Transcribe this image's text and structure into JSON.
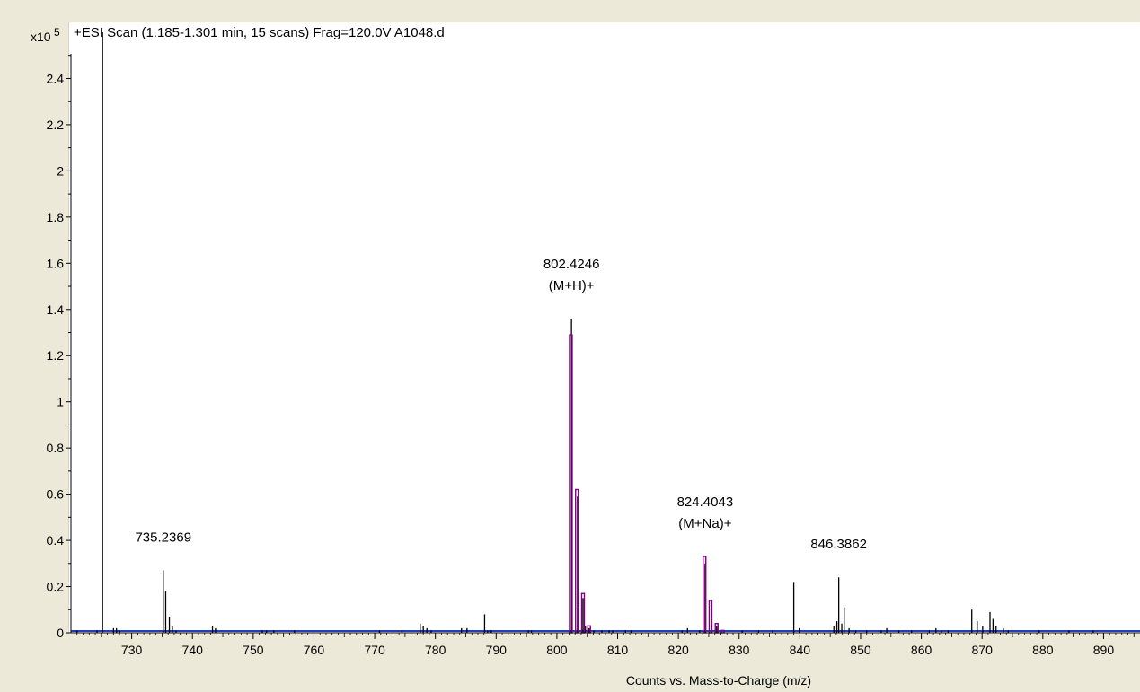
{
  "chart_data": {
    "type": "bar",
    "title": "+ESI Scan (1.185-1.301 min, 15 scans) Frag=120.0V A1048.d",
    "y_multiplier": "x10",
    "y_exponent": "5",
    "xlabel": "Counts vs. Mass-to-Charge (m/z)",
    "ylabel": "",
    "xlim": [
      720,
      896
    ],
    "ylim": [
      0,
      2.6
    ],
    "x_ticks": [
      730,
      740,
      750,
      760,
      770,
      780,
      790,
      800,
      810,
      820,
      830,
      840,
      850,
      860,
      870,
      880,
      890
    ],
    "x_tick_labels": [
      "730",
      "740",
      "750",
      "760",
      "770",
      "780",
      "790",
      "800",
      "810",
      "820",
      "830",
      "840",
      "850",
      "860",
      "870",
      "880",
      "890"
    ],
    "y_ticks": [
      0,
      0.2,
      0.4,
      0.6,
      0.8,
      1,
      1.2,
      1.4,
      1.6,
      1.8,
      2,
      2.2,
      2.4
    ],
    "y_tick_labels": [
      "0",
      "0.2",
      "0.4",
      "0.6",
      "0.8",
      "1",
      "1.2",
      "1.4",
      "1.6",
      "1.8",
      "2",
      "2.2",
      "2.4"
    ],
    "grid": false,
    "colors": {
      "measured": "#000000",
      "isotope_model": "#800080",
      "axis": "#000000",
      "baseline": "#1f3fbf",
      "background": "#ece9d8",
      "plot_background": "#ffffff"
    },
    "series": [
      {
        "values": [
          [
            721,
            0.01
          ],
          [
            724.3,
            0.01
          ],
          [
            725.2,
            2.6
          ],
          [
            727,
            0.02
          ],
          [
            727.5,
            0.02
          ],
          [
            728,
            0.01
          ],
          [
            735.2,
            0.27
          ],
          [
            735.6,
            0.18
          ],
          [
            736.2,
            0.07
          ],
          [
            736.7,
            0.03
          ],
          [
            737.3,
            0.01
          ],
          [
            743.3,
            0.03
          ],
          [
            743.8,
            0.02
          ],
          [
            751.5,
            0.01
          ],
          [
            752.2,
            0.01
          ],
          [
            753.4,
            0.01
          ],
          [
            756.8,
            0.01
          ],
          [
            770.8,
            0.01
          ],
          [
            774.5,
            0.01
          ],
          [
            777.5,
            0.04
          ],
          [
            778,
            0.03
          ],
          [
            778.6,
            0.02
          ],
          [
            779.3,
            0.01
          ],
          [
            784.3,
            0.02
          ],
          [
            785.2,
            0.02
          ],
          [
            788.1,
            0.08
          ],
          [
            788.6,
            0.01
          ],
          [
            789.2,
            0.01
          ],
          [
            795.3,
            0.01
          ],
          [
            795.8,
            0.01
          ],
          [
            802.4,
            1.36
          ],
          [
            803.4,
            0.59
          ],
          [
            803.6,
            0.12
          ],
          [
            804.3,
            0.15
          ],
          [
            804.7,
            0.03
          ],
          [
            805.3,
            0.02
          ],
          [
            806.1,
            0.01
          ],
          [
            807.4,
            0.01
          ],
          [
            808.6,
            0.01
          ],
          [
            809.2,
            0.01
          ],
          [
            811.3,
            0.01
          ],
          [
            812.2,
            0.01
          ],
          [
            820.6,
            0.01
          ],
          [
            821.5,
            0.02
          ],
          [
            823.5,
            0.01
          ],
          [
            824.4,
            0.3
          ],
          [
            825.4,
            0.12
          ],
          [
            826.3,
            0.03
          ],
          [
            830.5,
            0.01
          ],
          [
            833.2,
            0.01
          ],
          [
            835.5,
            0.01
          ],
          [
            839,
            0.22
          ],
          [
            839.9,
            0.02
          ],
          [
            845.6,
            0.03
          ],
          [
            846.1,
            0.05
          ],
          [
            846.4,
            0.24
          ],
          [
            846.9,
            0.04
          ],
          [
            847.3,
            0.11
          ],
          [
            848.1,
            0.02
          ],
          [
            849.2,
            0.01
          ],
          [
            851,
            0.01
          ],
          [
            853.4,
            0.01
          ],
          [
            854.3,
            0.02
          ],
          [
            856.3,
            0.01
          ],
          [
            858.4,
            0.01
          ],
          [
            861.3,
            0.01
          ],
          [
            862.4,
            0.02
          ],
          [
            863.3,
            0.01
          ],
          [
            864.4,
            0.01
          ],
          [
            868.3,
            0.1
          ],
          [
            869.2,
            0.05
          ],
          [
            870.1,
            0.03
          ],
          [
            871.3,
            0.09
          ],
          [
            871.8,
            0.06
          ],
          [
            872.3,
            0.03
          ],
          [
            873.5,
            0.02
          ],
          [
            874.3,
            0.01
          ],
          [
            879.4,
            0.01
          ],
          [
            884.3,
            0.01
          ],
          [
            888.3,
            0.01
          ]
        ]
      },
      {
        "values": [
          [
            802.3,
            1.29
          ],
          [
            803.3,
            0.62
          ],
          [
            804.3,
            0.17
          ],
          [
            805.3,
            0.03
          ],
          [
            824.3,
            0.33
          ],
          [
            825.3,
            0.14
          ],
          [
            826.3,
            0.04
          ],
          [
            827.3,
            0.01
          ]
        ]
      }
    ],
    "annotations": [
      {
        "x": 735.2,
        "lines": [
          "735.2369"
        ]
      },
      {
        "x": 802.4,
        "lines": [
          "802.4246",
          "(M+H)+"
        ]
      },
      {
        "x": 824.4,
        "lines": [
          "824.4043",
          "(M+Na)+"
        ]
      },
      {
        "x": 846.4,
        "lines": [
          "846.3862"
        ]
      }
    ]
  }
}
